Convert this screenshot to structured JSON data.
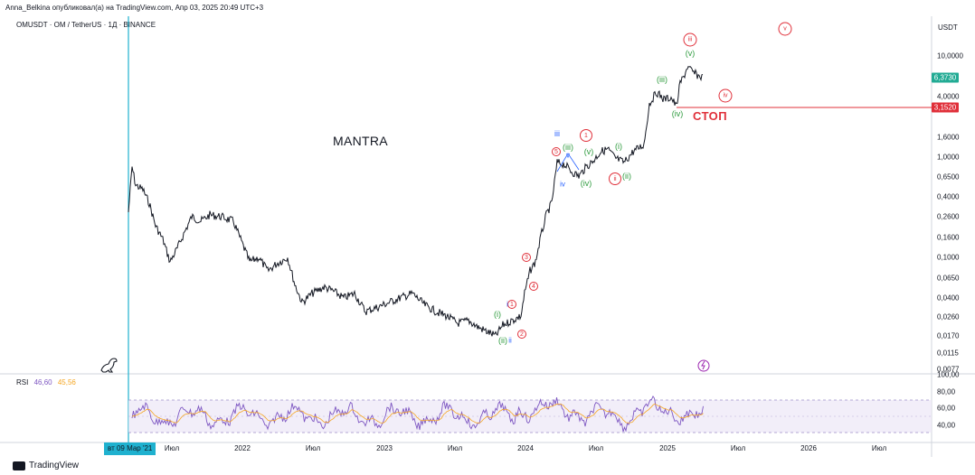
{
  "header": {
    "publisher": "Anna_Belkina опубликовал(а) на TradingView.com, Апр 03, 2025 20:49 UTC+3",
    "symbol_line": "OMUSDT · OM / TetherUS · 1Д · BINANCE",
    "currency": "USDT"
  },
  "price_axis": {
    "ticks": [
      "10,0000",
      "6,3730",
      "4,0000",
      "3,1520",
      "1,6000",
      "1,0000",
      "0,6500",
      "0,4000",
      "0,2600",
      "0,1600",
      "0,1000",
      "0,0650",
      "0,0400",
      "0,0260",
      "0,0170",
      "0,0115",
      "0,0077"
    ],
    "last_price": "6,3730",
    "stop_price": "3,1520",
    "last_price_color": "#22ab94",
    "stop_price_color": "#e0303a"
  },
  "annotations": {
    "title": "MANTRA",
    "stop": "СТОП",
    "green_labels": [
      "(v)",
      "(iii)",
      "(iv)",
      "(iii)",
      "(v)",
      "(i)",
      "(ii)",
      "(iv)",
      "(i)",
      "(ii)"
    ],
    "red_circles": [
      "iii",
      "v",
      "iv",
      "1",
      "ii",
      "5",
      "3",
      "4",
      "1",
      "2"
    ],
    "blue_labels": [
      "iii",
      "v",
      "iv",
      "i",
      "ii"
    ]
  },
  "rsi": {
    "label": "RSI",
    "value1": "46,60",
    "value2": "45,56",
    "ticks": [
      "100,00",
      "80,00",
      "60,00",
      "40,00"
    ],
    "line_color": "#7e57c2",
    "ma_color": "#f5a623"
  },
  "time_axis": {
    "date_tag": "вт 09 Мар '21",
    "ticks": [
      "Июл",
      "2022",
      "Июл",
      "2023",
      "Июл",
      "2024",
      "Июл",
      "2025",
      "Июл",
      "2026",
      "Июл"
    ]
  },
  "footer": {
    "brand": "TradingView"
  }
}
